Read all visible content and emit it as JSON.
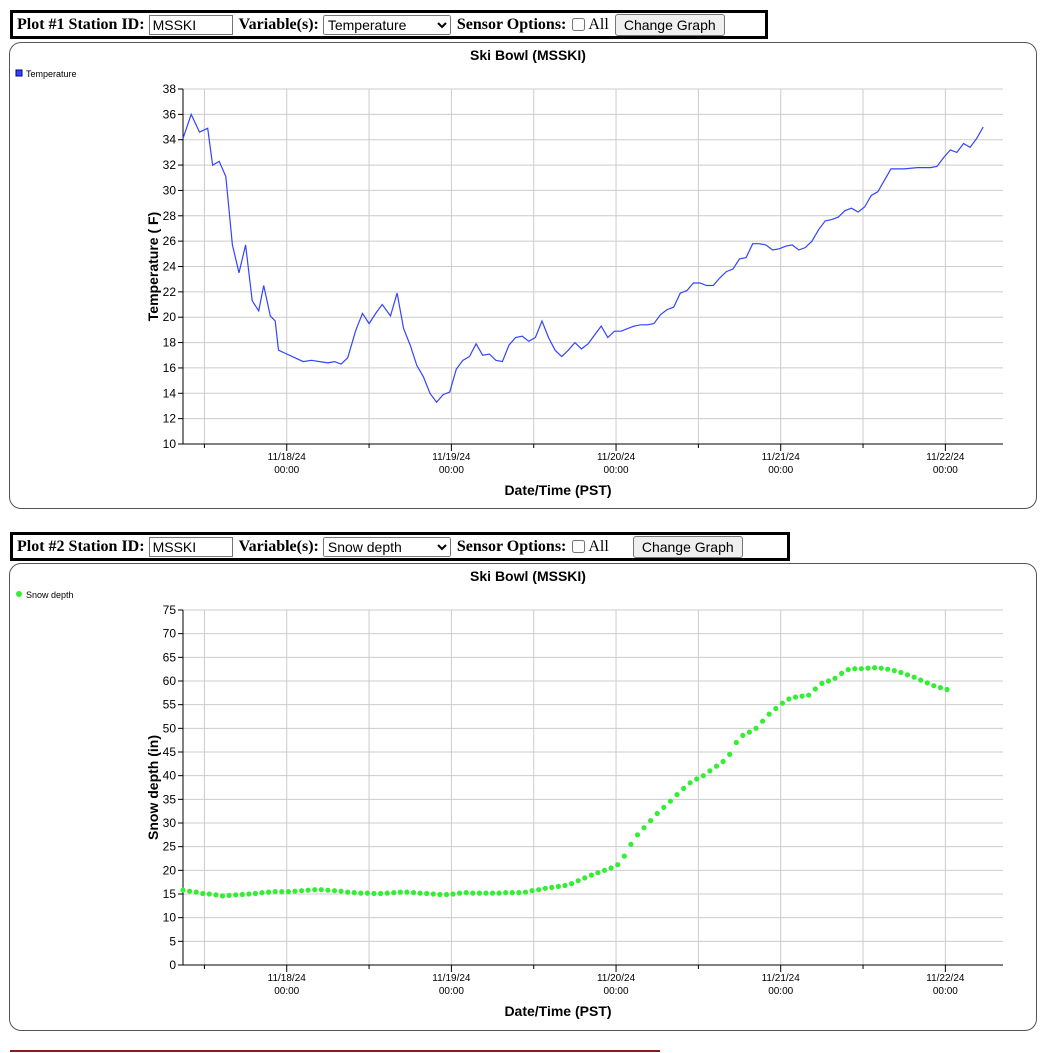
{
  "plots": [
    {
      "label": "Plot #1 Station ID:",
      "station_id": "MSSKI",
      "variables_label": "Variable(s):",
      "variable_selected": "Temperature",
      "sensor_label": "Sensor Options:",
      "all_label": "All",
      "button_label": "Change Graph"
    },
    {
      "label": "Plot #2 Station ID:",
      "station_id": "MSSKI",
      "variables_label": "Variable(s):",
      "variable_selected": "Snow depth",
      "sensor_label": "Sensor Options:",
      "all_label": "All",
      "button_label": "Change Graph"
    }
  ],
  "chart_data": [
    {
      "type": "line",
      "title": "Ski Bowl (MSSKI)",
      "xlabel": "Date/Time (PST)",
      "ylabel": "Temperature ( F)",
      "legend": "Temperature",
      "legend_position": "top-left",
      "color": "#3344ff",
      "grid": true,
      "ylim": [
        10,
        38
      ],
      "y_ticks": [
        10,
        12,
        14,
        16,
        18,
        20,
        22,
        24,
        26,
        28,
        30,
        32,
        34,
        36,
        38
      ],
      "x_tick_labels": [
        {
          "date": "11/18/24",
          "time": "00:00"
        },
        {
          "date": "11/19/24",
          "time": "00:00"
        },
        {
          "date": "11/20/24",
          "time": "00:00"
        },
        {
          "date": "11/21/24",
          "time": "00:00"
        },
        {
          "date": "11/22/24",
          "time": "00:00"
        }
      ],
      "x_range_days": [
        -0.63,
        4.35
      ],
      "points": [
        [
          -0.63,
          34.1
        ],
        [
          -0.58,
          36.0
        ],
        [
          -0.53,
          34.6
        ],
        [
          -0.48,
          34.9
        ],
        [
          -0.45,
          32.0
        ],
        [
          -0.41,
          32.3
        ],
        [
          -0.37,
          31.1
        ],
        [
          -0.33,
          25.7
        ],
        [
          -0.29,
          23.5
        ],
        [
          -0.25,
          25.7
        ],
        [
          -0.21,
          21.3
        ],
        [
          -0.17,
          20.5
        ],
        [
          -0.14,
          22.5
        ],
        [
          -0.1,
          20.1
        ],
        [
          -0.07,
          19.7
        ],
        [
          -0.05,
          17.4
        ],
        [
          0.0,
          17.1
        ],
        [
          0.05,
          16.8
        ],
        [
          0.1,
          16.5
        ],
        [
          0.15,
          16.6
        ],
        [
          0.2,
          16.5
        ],
        [
          0.25,
          16.4
        ],
        [
          0.29,
          16.5
        ],
        [
          0.33,
          16.3
        ],
        [
          0.37,
          16.8
        ],
        [
          0.42,
          19.0
        ],
        [
          0.46,
          20.3
        ],
        [
          0.5,
          19.5
        ],
        [
          0.54,
          20.3
        ],
        [
          0.58,
          21.0
        ],
        [
          0.63,
          20.1
        ],
        [
          0.67,
          21.9
        ],
        [
          0.71,
          19.1
        ],
        [
          0.75,
          17.8
        ],
        [
          0.79,
          16.2
        ],
        [
          0.83,
          15.3
        ],
        [
          0.87,
          14.0
        ],
        [
          0.91,
          13.3
        ],
        [
          0.95,
          13.9
        ],
        [
          0.99,
          14.1
        ],
        [
          1.03,
          15.9
        ],
        [
          1.07,
          16.6
        ],
        [
          1.11,
          16.9
        ],
        [
          1.15,
          17.9
        ],
        [
          1.19,
          17.0
        ],
        [
          1.23,
          17.1
        ],
        [
          1.27,
          16.6
        ],
        [
          1.31,
          16.5
        ],
        [
          1.35,
          17.8
        ],
        [
          1.39,
          18.4
        ],
        [
          1.43,
          18.5
        ],
        [
          1.47,
          18.1
        ],
        [
          1.51,
          18.4
        ],
        [
          1.55,
          19.7
        ],
        [
          1.59,
          18.4
        ],
        [
          1.63,
          17.4
        ],
        [
          1.67,
          16.9
        ],
        [
          1.71,
          17.4
        ],
        [
          1.75,
          18.0
        ],
        [
          1.79,
          17.5
        ],
        [
          1.83,
          17.9
        ],
        [
          1.87,
          18.6
        ],
        [
          1.91,
          19.3
        ],
        [
          1.95,
          18.4
        ],
        [
          1.99,
          18.9
        ],
        [
          2.03,
          18.9
        ],
        [
          2.07,
          19.1
        ],
        [
          2.11,
          19.3
        ],
        [
          2.15,
          19.4
        ],
        [
          2.19,
          19.4
        ],
        [
          2.23,
          19.5
        ],
        [
          2.27,
          20.2
        ],
        [
          2.31,
          20.6
        ],
        [
          2.35,
          20.8
        ],
        [
          2.39,
          21.9
        ],
        [
          2.43,
          22.1
        ],
        [
          2.47,
          22.7
        ],
        [
          2.51,
          22.7
        ],
        [
          2.55,
          22.5
        ],
        [
          2.59,
          22.5
        ],
        [
          2.63,
          23.1
        ],
        [
          2.67,
          23.6
        ],
        [
          2.71,
          23.8
        ],
        [
          2.75,
          24.6
        ],
        [
          2.79,
          24.7
        ],
        [
          2.83,
          25.8
        ],
        [
          2.87,
          25.8
        ],
        [
          2.91,
          25.7
        ],
        [
          2.95,
          25.3
        ],
        [
          2.99,
          25.4
        ],
        [
          3.03,
          25.6
        ],
        [
          3.07,
          25.7
        ],
        [
          3.11,
          25.3
        ],
        [
          3.15,
          25.5
        ],
        [
          3.19,
          26.0
        ],
        [
          3.23,
          26.9
        ],
        [
          3.27,
          27.6
        ],
        [
          3.31,
          27.7
        ],
        [
          3.35,
          27.9
        ],
        [
          3.39,
          28.4
        ],
        [
          3.43,
          28.6
        ],
        [
          3.47,
          28.3
        ],
        [
          3.51,
          28.7
        ],
        [
          3.55,
          29.6
        ],
        [
          3.59,
          29.9
        ],
        [
          3.63,
          30.8
        ],
        [
          3.67,
          31.7
        ],
        [
          3.75,
          31.7
        ],
        [
          3.83,
          31.8
        ],
        [
          3.91,
          31.8
        ],
        [
          3.95,
          31.9
        ],
        [
          3.99,
          32.6
        ],
        [
          4.03,
          33.2
        ],
        [
          4.07,
          33.0
        ],
        [
          4.11,
          33.7
        ],
        [
          4.15,
          33.4
        ],
        [
          4.19,
          34.1
        ],
        [
          4.23,
          35.0
        ]
      ]
    },
    {
      "type": "scatter",
      "title": "Ski Bowl (MSSKI)",
      "xlabel": "Date/Time (PST)",
      "ylabel": "Snow depth (in)",
      "legend": "Snow depth",
      "legend_position": "top-left",
      "color": "#33ee33",
      "grid": true,
      "ylim": [
        0,
        75
      ],
      "y_ticks": [
        0,
        5,
        10,
        15,
        20,
        25,
        30,
        35,
        40,
        45,
        50,
        55,
        60,
        65,
        70,
        75
      ],
      "x_tick_labels": [
        {
          "date": "11/18/24",
          "time": "00:00"
        },
        {
          "date": "11/19/24",
          "time": "00:00"
        },
        {
          "date": "11/20/24",
          "time": "00:00"
        },
        {
          "date": "11/21/24",
          "time": "00:00"
        },
        {
          "date": "11/22/24",
          "time": "00:00"
        }
      ],
      "x_range_days": [
        -0.63,
        4.35
      ],
      "points": [
        [
          -0.63,
          15.8
        ],
        [
          -0.59,
          15.6
        ],
        [
          -0.55,
          15.4
        ],
        [
          -0.51,
          15.1
        ],
        [
          -0.47,
          15.0
        ],
        [
          -0.43,
          14.8
        ],
        [
          -0.39,
          14.6
        ],
        [
          -0.35,
          14.7
        ],
        [
          -0.31,
          14.8
        ],
        [
          -0.27,
          14.9
        ],
        [
          -0.23,
          15.0
        ],
        [
          -0.19,
          15.1
        ],
        [
          -0.15,
          15.3
        ],
        [
          -0.11,
          15.4
        ],
        [
          -0.07,
          15.5
        ],
        [
          -0.03,
          15.5
        ],
        [
          0.01,
          15.5
        ],
        [
          0.05,
          15.6
        ],
        [
          0.09,
          15.7
        ],
        [
          0.13,
          15.8
        ],
        [
          0.17,
          15.9
        ],
        [
          0.21,
          15.9
        ],
        [
          0.25,
          15.8
        ],
        [
          0.29,
          15.7
        ],
        [
          0.33,
          15.6
        ],
        [
          0.37,
          15.4
        ],
        [
          0.41,
          15.3
        ],
        [
          0.45,
          15.2
        ],
        [
          0.49,
          15.2
        ],
        [
          0.53,
          15.1
        ],
        [
          0.57,
          15.1
        ],
        [
          0.61,
          15.2
        ],
        [
          0.65,
          15.3
        ],
        [
          0.69,
          15.4
        ],
        [
          0.73,
          15.4
        ],
        [
          0.77,
          15.3
        ],
        [
          0.81,
          15.2
        ],
        [
          0.85,
          15.1
        ],
        [
          0.89,
          15.0
        ],
        [
          0.93,
          14.9
        ],
        [
          0.97,
          14.9
        ],
        [
          1.01,
          15.0
        ],
        [
          1.05,
          15.2
        ],
        [
          1.09,
          15.3
        ],
        [
          1.13,
          15.2
        ],
        [
          1.17,
          15.2
        ],
        [
          1.21,
          15.2
        ],
        [
          1.25,
          15.2
        ],
        [
          1.29,
          15.2
        ],
        [
          1.33,
          15.3
        ],
        [
          1.37,
          15.3
        ],
        [
          1.41,
          15.3
        ],
        [
          1.45,
          15.4
        ],
        [
          1.49,
          15.7
        ],
        [
          1.53,
          15.9
        ],
        [
          1.57,
          16.2
        ],
        [
          1.61,
          16.4
        ],
        [
          1.65,
          16.6
        ],
        [
          1.69,
          16.8
        ],
        [
          1.73,
          17.2
        ],
        [
          1.77,
          17.8
        ],
        [
          1.81,
          18.4
        ],
        [
          1.85,
          19.0
        ],
        [
          1.89,
          19.5
        ],
        [
          1.93,
          20.0
        ],
        [
          1.97,
          20.5
        ],
        [
          2.01,
          21.2
        ],
        [
          2.05,
          23.0
        ],
        [
          2.09,
          25.5
        ],
        [
          2.13,
          27.5
        ],
        [
          2.17,
          29.0
        ],
        [
          2.21,
          30.5
        ],
        [
          2.25,
          32.0
        ],
        [
          2.29,
          33.3
        ],
        [
          2.33,
          34.6
        ],
        [
          2.37,
          36.0
        ],
        [
          2.41,
          37.3
        ],
        [
          2.45,
          38.5
        ],
        [
          2.49,
          39.3
        ],
        [
          2.53,
          40.0
        ],
        [
          2.57,
          41.0
        ],
        [
          2.61,
          42.0
        ],
        [
          2.65,
          43.0
        ],
        [
          2.69,
          44.5
        ],
        [
          2.73,
          47.0
        ],
        [
          2.77,
          48.5
        ],
        [
          2.81,
          49.2
        ],
        [
          2.85,
          50.0
        ],
        [
          2.89,
          51.5
        ],
        [
          2.93,
          53.0
        ],
        [
          2.97,
          54.2
        ],
        [
          3.01,
          55.3
        ],
        [
          3.05,
          56.2
        ],
        [
          3.09,
          56.6
        ],
        [
          3.13,
          56.8
        ],
        [
          3.17,
          57.0
        ],
        [
          3.21,
          58.3
        ],
        [
          3.25,
          59.5
        ],
        [
          3.29,
          60.0
        ],
        [
          3.33,
          60.6
        ],
        [
          3.37,
          61.6
        ],
        [
          3.41,
          62.4
        ],
        [
          3.45,
          62.6
        ],
        [
          3.49,
          62.6
        ],
        [
          3.53,
          62.7
        ],
        [
          3.57,
          62.8
        ],
        [
          3.61,
          62.7
        ],
        [
          3.65,
          62.5
        ],
        [
          3.69,
          62.2
        ],
        [
          3.73,
          61.8
        ],
        [
          3.77,
          61.3
        ],
        [
          3.81,
          60.8
        ],
        [
          3.85,
          60.2
        ],
        [
          3.89,
          59.6
        ],
        [
          3.93,
          59.0
        ],
        [
          3.97,
          58.6
        ],
        [
          4.01,
          58.2
        ]
      ]
    }
  ]
}
